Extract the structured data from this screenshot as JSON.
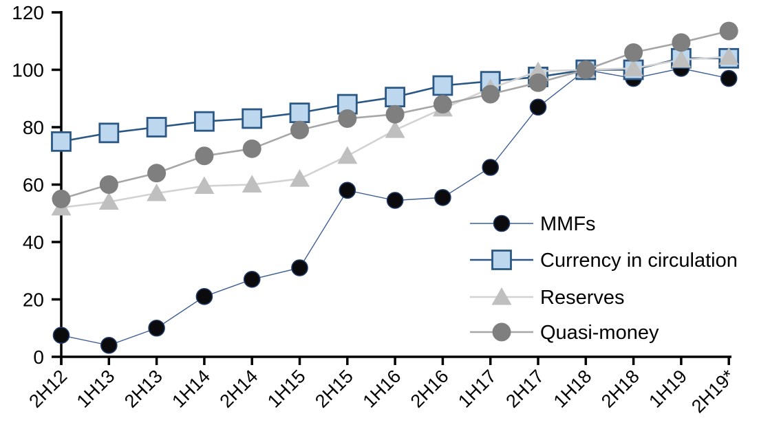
{
  "chart_data": {
    "type": "line",
    "title": "",
    "xlabel": "",
    "ylabel": "",
    "grid": false,
    "legend_position": "inside-right",
    "ylim": [
      0,
      120
    ],
    "yticks": [
      0,
      20,
      40,
      60,
      80,
      100,
      120
    ],
    "categories": [
      "2H12",
      "1H13",
      "2H13",
      "1H14",
      "2H14",
      "1H15",
      "2H15",
      "1H16",
      "2H16",
      "1H17",
      "2H17",
      "1H18",
      "2H18",
      "1H19",
      "2H19*"
    ],
    "series": [
      {
        "name": "MMFs",
        "marker": "circle",
        "marker_size": 23,
        "marker_fill": "#0b0b0d",
        "marker_stroke": "#1F3864",
        "marker_stroke_width": 1.6,
        "line_color": "#3F5F94",
        "line_width": 1.4,
        "values": [
          7.5,
          4,
          10,
          21,
          27,
          31,
          58,
          54.5,
          55.5,
          66,
          87,
          100,
          97,
          100.5,
          97
        ]
      },
      {
        "name": "Currency in circulation",
        "marker": "square",
        "marker_size": 27,
        "marker_fill": "#BDD7EE",
        "marker_stroke": "#2A5783",
        "marker_stroke_width": 2.8,
        "line_color": "#2A5783",
        "line_width": 2.6,
        "values": [
          75,
          78,
          80,
          82,
          83,
          85,
          88,
          90.5,
          94.5,
          96,
          97.5,
          100,
          100,
          104,
          104
        ]
      },
      {
        "name": "Reserves",
        "marker": "triangle",
        "marker_size": 29,
        "marker_fill": "#BFBFBF",
        "marker_stroke": "none",
        "marker_stroke_width": 0,
        "line_color": "#D2D2D2",
        "line_width": 2.6,
        "values": [
          52,
          54,
          57,
          59.5,
          60,
          62,
          70,
          79,
          86.5,
          93.5,
          99.5,
          100,
          100.5,
          103.5,
          104.5
        ]
      },
      {
        "name": "Quasi-money",
        "marker": "circle",
        "marker_size": 27,
        "marker_fill": "#7F7F7F",
        "marker_stroke": "none",
        "marker_stroke_width": 0,
        "line_color": "#A6A6A6",
        "line_width": 2.6,
        "values": [
          55,
          60,
          64,
          70,
          72.5,
          79,
          83,
          84.5,
          88,
          91.5,
          95.5,
          100,
          106,
          109.5,
          113.5
        ]
      }
    ],
    "axis_color": "#000000"
  }
}
